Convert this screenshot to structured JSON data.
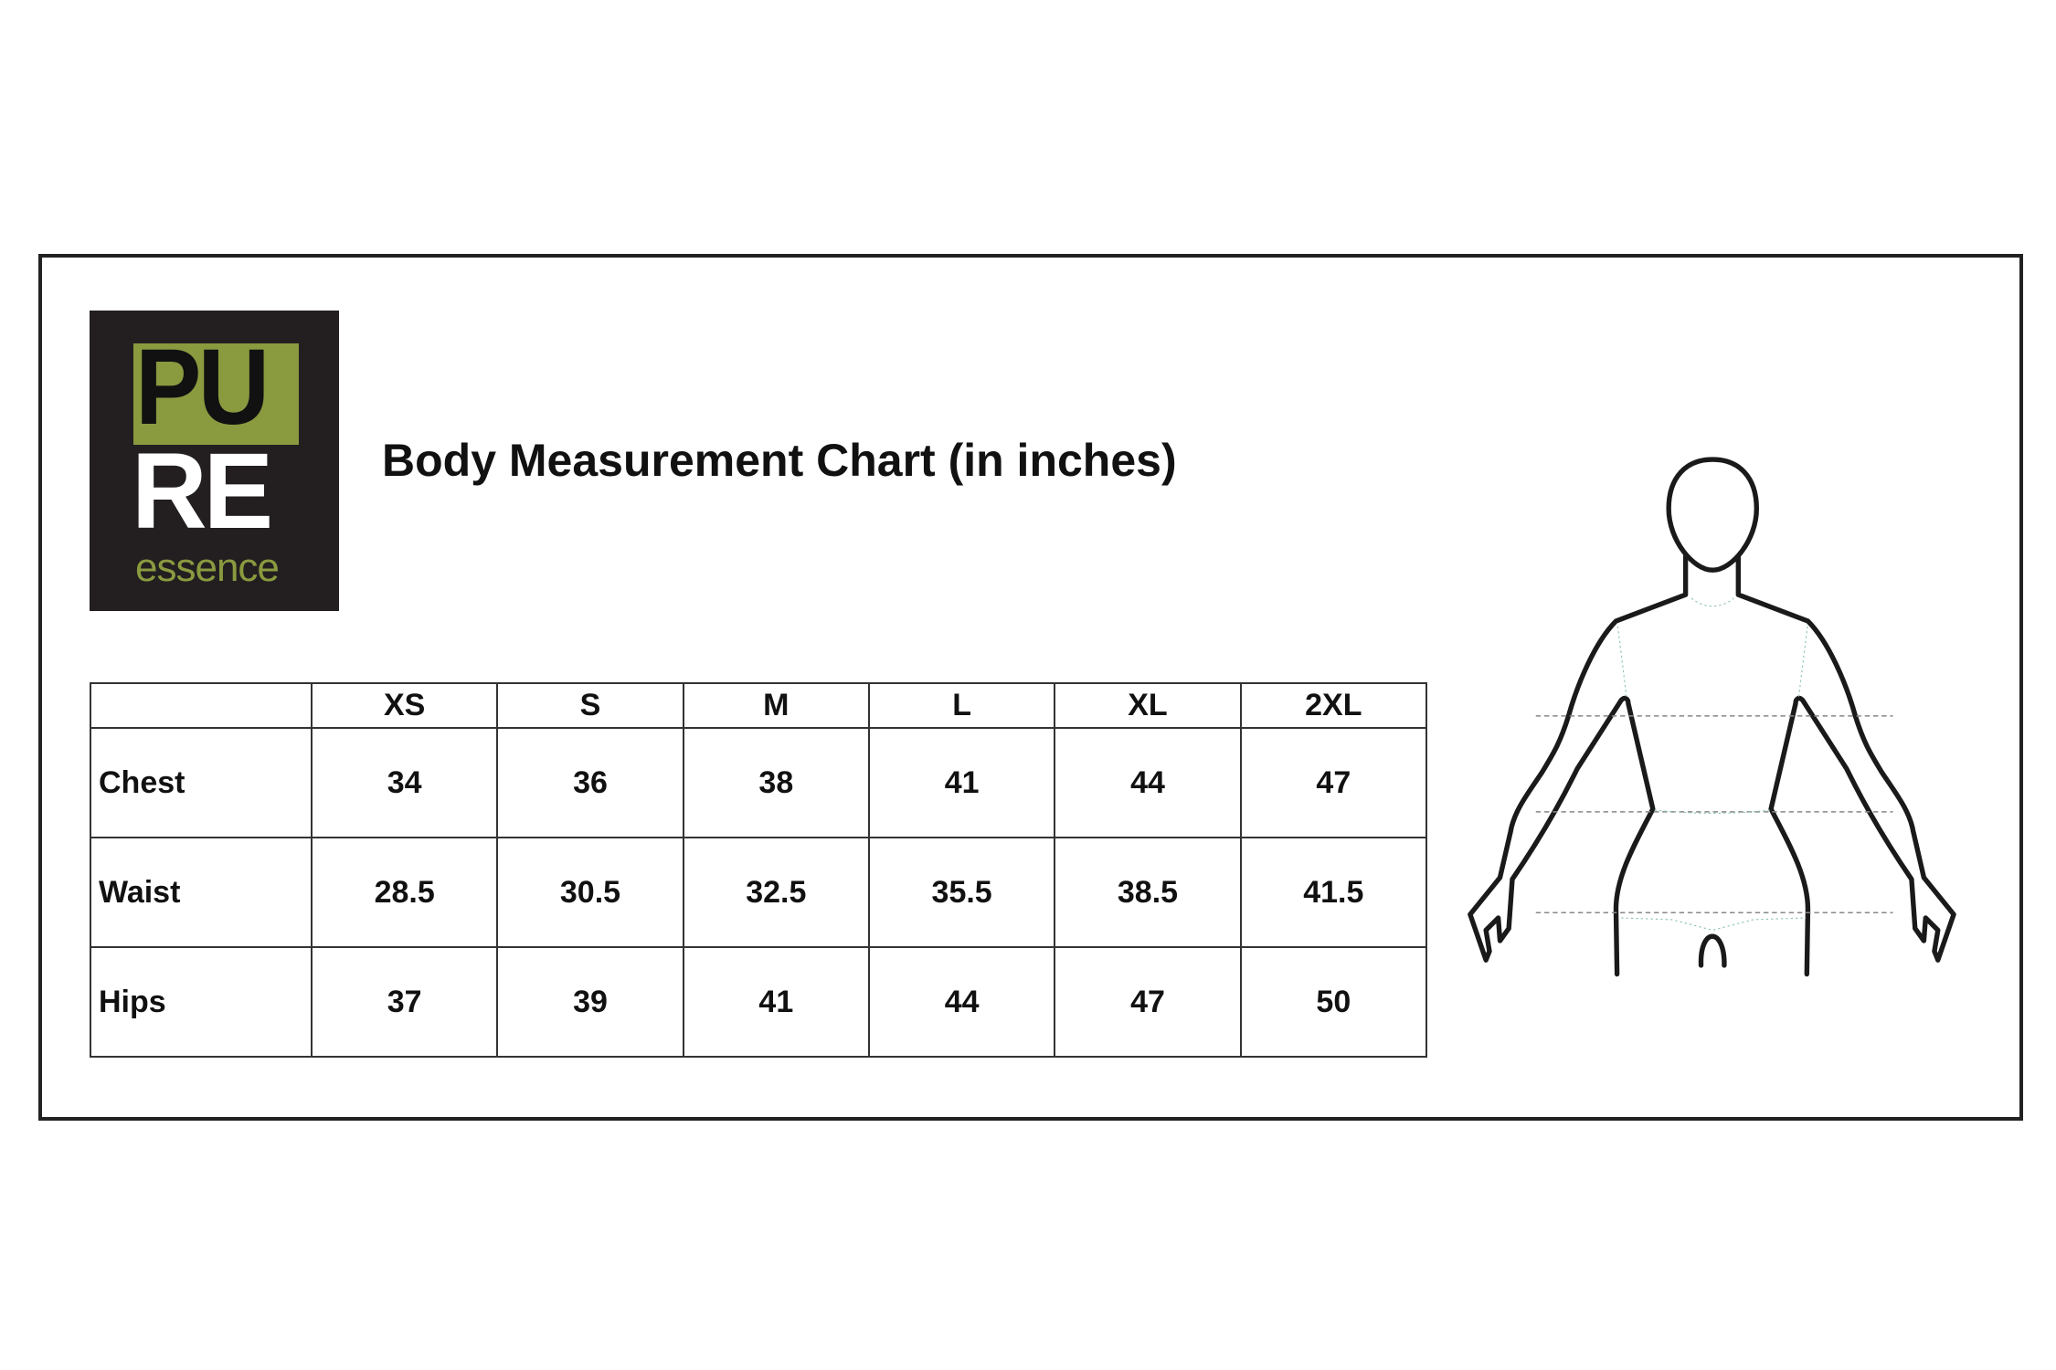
{
  "logo": {
    "line1": "PU",
    "line2": "RE",
    "line3": "essence",
    "colors": {
      "background": "#231f20",
      "accent": "#8a9a3f"
    }
  },
  "title": "Body Measurement Chart (in inches)",
  "table": {
    "columns": [
      "",
      "XS",
      "S",
      "M",
      "L",
      "XL",
      "2XL"
    ],
    "rows": [
      {
        "label": "Chest",
        "values": [
          "34",
          "36",
          "38",
          "41",
          "44",
          "47"
        ]
      },
      {
        "label": "Waist",
        "values": [
          "28.5",
          "30.5",
          "32.5",
          "35.5",
          "38.5",
          "41.5"
        ]
      },
      {
        "label": "Hips",
        "values": [
          "37",
          "39",
          "41",
          "44",
          "47",
          "50"
        ]
      }
    ]
  },
  "figure": {
    "icon": "body-outline-icon",
    "measurement_lines": [
      "chest",
      "waist",
      "hips"
    ]
  }
}
